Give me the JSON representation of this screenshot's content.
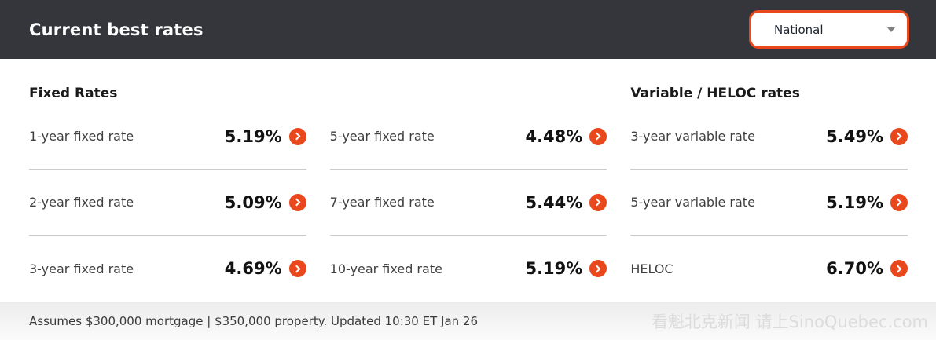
{
  "header": {
    "title": "Current best rates",
    "region_dropdown": {
      "value": "National"
    }
  },
  "rate_columns": [
    {
      "title": "Fixed Rates",
      "rows": [
        {
          "label": "1-year fixed rate",
          "value": "5.19%"
        },
        {
          "label": "2-year fixed rate",
          "value": "5.09%"
        },
        {
          "label": "3-year fixed rate",
          "value": "4.69%"
        }
      ]
    },
    {
      "title": "",
      "rows": [
        {
          "label": "5-year fixed rate",
          "value": "4.48%"
        },
        {
          "label": "7-year fixed rate",
          "value": "5.44%"
        },
        {
          "label": "10-year fixed rate",
          "value": "5.19%"
        }
      ]
    },
    {
      "title": "Variable / HELOC rates",
      "rows": [
        {
          "label": "3-year variable rate",
          "value": "5.49%"
        },
        {
          "label": "5-year variable rate",
          "value": "5.19%"
        },
        {
          "label": "HELOC",
          "value": "6.70%"
        }
      ]
    }
  ],
  "footer": {
    "note": "Assumes $300,000 mortgage | $350,000 property. Updated 10:30 ET Jan 26"
  },
  "watermark": "看魁北克新闻 请上SinoQuebec.com",
  "colors": {
    "accent": "#e8481c",
    "header_bg": "#34363c",
    "divider": "#cbcbcb"
  }
}
